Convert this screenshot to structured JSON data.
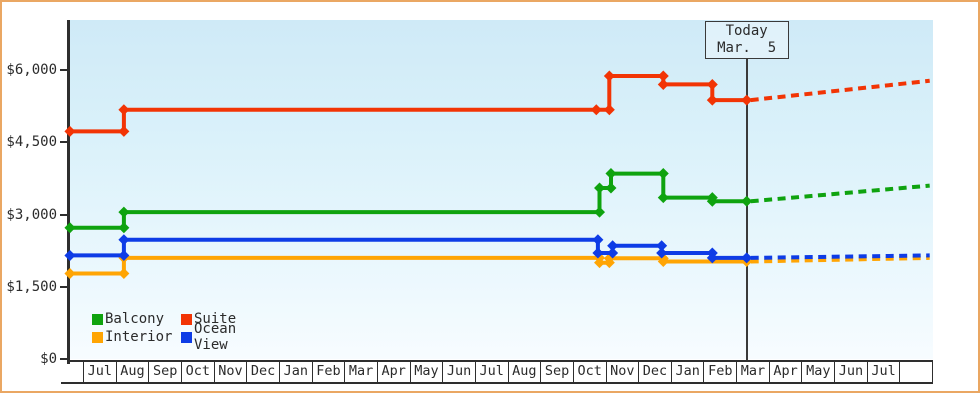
{
  "frame": {
    "border_color": "#eaa763"
  },
  "chart_data": {
    "type": "line",
    "style": "step",
    "x_axis": {
      "unit": "month",
      "tick_labels": [
        "Jul",
        "Aug",
        "Sep",
        "Oct",
        "Nov",
        "Dec",
        "Jan",
        "Feb",
        "Mar",
        "Apr",
        "May",
        "Jun",
        "Jul",
        "Aug",
        "Sep",
        "Oct",
        "Nov",
        "Dec",
        "Jan",
        "Feb",
        "Mar",
        "Apr",
        "May",
        "Jun",
        "Jul",
        ""
      ]
    },
    "y_axis": {
      "tick_labels": [
        "$0",
        "$1,500",
        "$3,000",
        "$4,500",
        "$6,000"
      ],
      "tick_values": [
        0,
        1500,
        3000,
        4500,
        6000
      ],
      "ylim": [
        0,
        7000
      ],
      "gridlines": false
    },
    "today_marker": {
      "line1": "Today",
      "line2": "Mar.  5",
      "month_offset": 20.3
    },
    "series": [
      {
        "name": "Interior",
        "color": "#ffa504",
        "points": [
          [
            -0.4,
            1775
          ],
          [
            1.25,
            2100
          ],
          [
            15.8,
            2000
          ],
          [
            16.1,
            2090
          ],
          [
            17.75,
            2025
          ],
          [
            20.3,
            2025
          ]
        ],
        "projection": {
          "end_month_offset": 25.9,
          "end_value": 2100
        }
      },
      {
        "name": "Ocean View",
        "color": "#0e3ce6",
        "points": [
          [
            -0.4,
            2150
          ],
          [
            1.25,
            2475
          ],
          [
            15.75,
            2200
          ],
          [
            16.2,
            2350
          ],
          [
            17.7,
            2200
          ],
          [
            19.25,
            2100
          ],
          [
            20.3,
            2100
          ]
        ],
        "projection": {
          "end_month_offset": 25.9,
          "end_value": 2150
        }
      },
      {
        "name": "Balcony",
        "color": "#0fa30f",
        "points": [
          [
            -0.4,
            2725
          ],
          [
            1.25,
            3050
          ],
          [
            15.8,
            3550
          ],
          [
            16.15,
            3850
          ],
          [
            17.75,
            3350
          ],
          [
            19.25,
            3275
          ],
          [
            20.3,
            3275
          ]
        ],
        "projection": {
          "end_month_offset": 25.9,
          "end_value": 3600
        }
      },
      {
        "name": "Suite",
        "color": "#f23405",
        "points": [
          [
            -0.4,
            4725
          ],
          [
            1.25,
            5175
          ],
          [
            15.7,
            5175
          ],
          [
            16.1,
            5875
          ],
          [
            17.75,
            5700
          ],
          [
            19.25,
            5375
          ],
          [
            20.3,
            5375
          ]
        ],
        "projection": {
          "end_month_offset": 25.9,
          "end_value": 5775
        }
      }
    ],
    "legend": {
      "position": "bottom-left",
      "rows": [
        [
          "Balcony",
          "Suite"
        ],
        [
          "Interior",
          "Ocean View"
        ]
      ]
    }
  }
}
